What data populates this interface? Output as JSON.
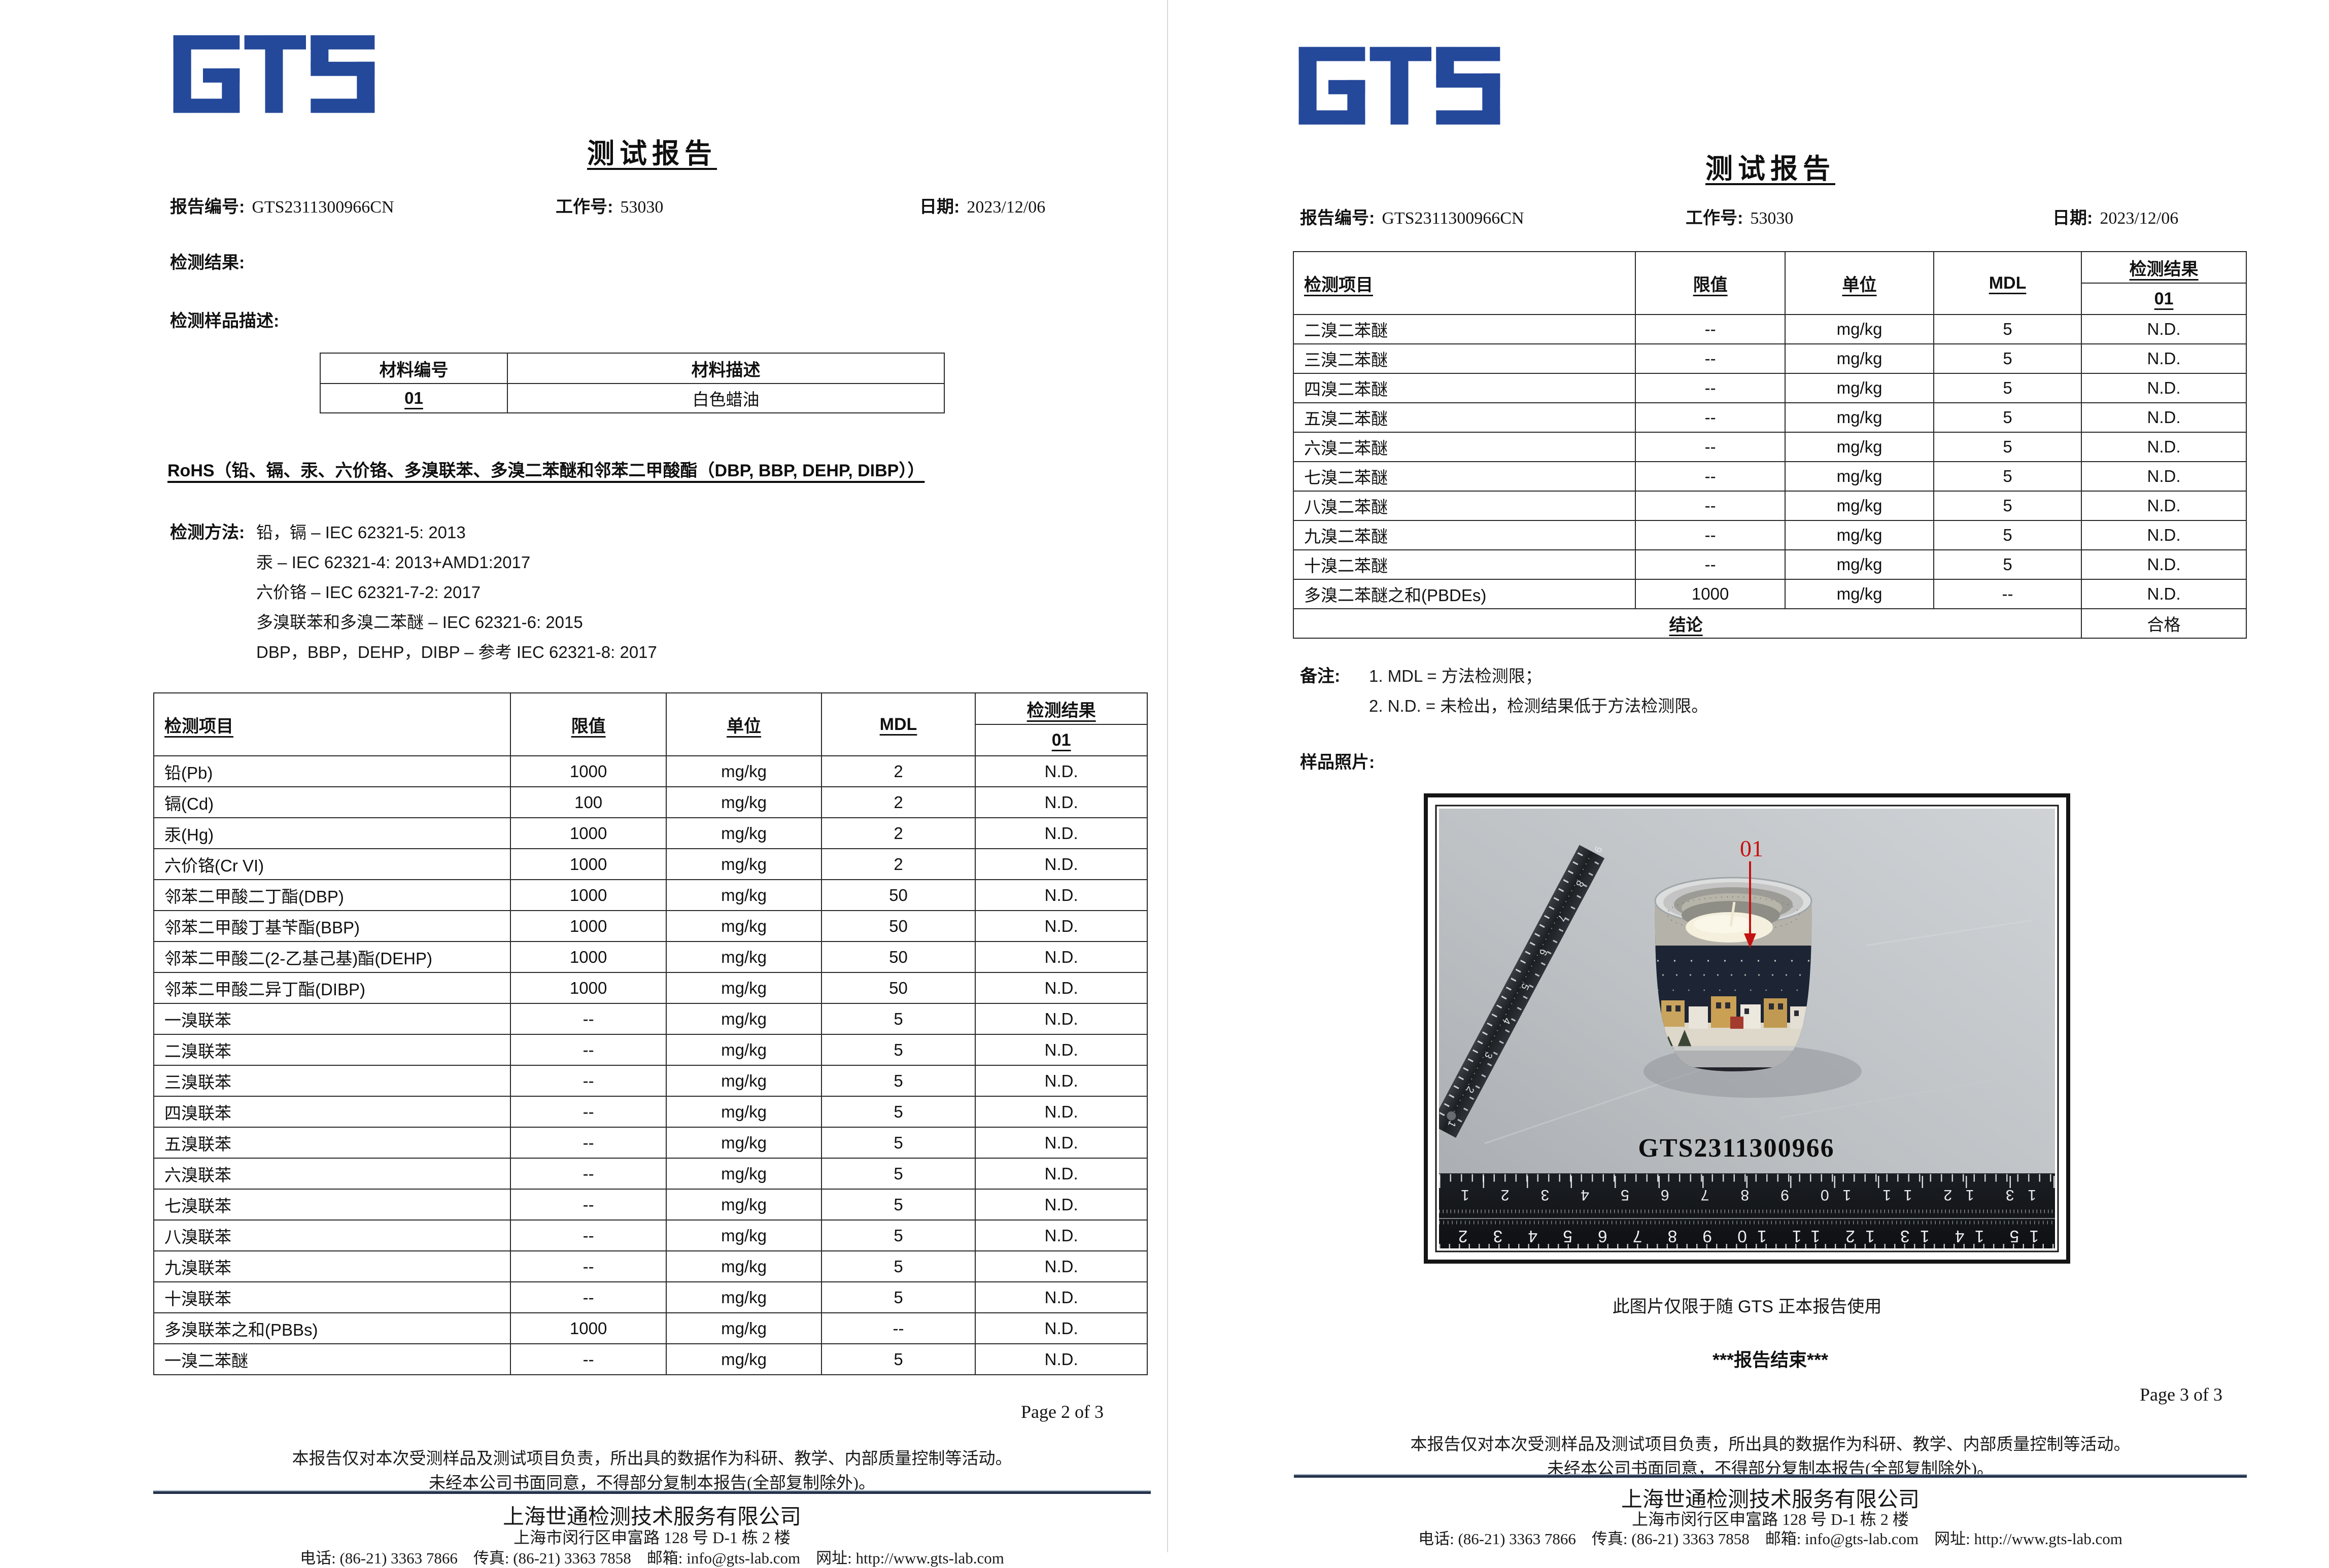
{
  "report": {
    "logo_text": "GTS",
    "title": "测试报告",
    "report_no_label": "报告编号:",
    "report_no": "GTS2311300966CN",
    "job_no_label": "工作号:",
    "job_no": "53030",
    "date_label": "日期:",
    "date": "2023/12/06"
  },
  "colors": {
    "logo_blue": "#24489A",
    "marker_red": "#c41111"
  },
  "page2": {
    "page_label": "Page 2 of 3",
    "result_label": "检测结果:",
    "sample_desc_label": "检测样品描述:",
    "material_table": {
      "headers": [
        "材料编号",
        "材料描述"
      ],
      "row": {
        "material_no": "01",
        "material_desc": "白色蜡油"
      }
    },
    "rohs_heading": "RoHS（铅、镉、汞、六价铬、多溴联苯、多溴二苯醚和邻苯二甲酸酯（DBP, BBP, DEHP, DIBP））",
    "methods": {
      "label": "检测方法:",
      "lines": [
        "铅，镉 – IEC 62321-5: 2013",
        "汞 – IEC 62321-4: 2013+AMD1:2017",
        "六价铬 – IEC 62321-7-2: 2017",
        "多溴联苯和多溴二苯醚 – IEC 62321-6: 2015",
        "DBP，BBP，DEHP，DIBP – 参考 IEC 62321-8: 2017"
      ]
    },
    "table": {
      "headers": [
        "检测项目",
        "限值",
        "单位",
        "MDL",
        "检测结果"
      ],
      "sub_header": "01",
      "rows": [
        [
          "铅(Pb)",
          "1000",
          "mg/kg",
          "2",
          "N.D."
        ],
        [
          "镉(Cd)",
          "100",
          "mg/kg",
          "2",
          "N.D."
        ],
        [
          "汞(Hg)",
          "1000",
          "mg/kg",
          "2",
          "N.D."
        ],
        [
          "六价铬(Cr VI)",
          "1000",
          "mg/kg",
          "2",
          "N.D."
        ],
        [
          "邻苯二甲酸二丁酯(DBP)",
          "1000",
          "mg/kg",
          "50",
          "N.D."
        ],
        [
          "邻苯二甲酸丁基苄酯(BBP)",
          "1000",
          "mg/kg",
          "50",
          "N.D."
        ],
        [
          "邻苯二甲酸二(2-乙基己基)酯(DEHP)",
          "1000",
          "mg/kg",
          "50",
          "N.D."
        ],
        [
          "邻苯二甲酸二异丁酯(DIBP)",
          "1000",
          "mg/kg",
          "50",
          "N.D."
        ],
        [
          "一溴联苯",
          "--",
          "mg/kg",
          "5",
          "N.D."
        ],
        [
          "二溴联苯",
          "--",
          "mg/kg",
          "5",
          "N.D."
        ],
        [
          "三溴联苯",
          "--",
          "mg/kg",
          "5",
          "N.D."
        ],
        [
          "四溴联苯",
          "--",
          "mg/kg",
          "5",
          "N.D."
        ],
        [
          "五溴联苯",
          "--",
          "mg/kg",
          "5",
          "N.D."
        ],
        [
          "六溴联苯",
          "--",
          "mg/kg",
          "5",
          "N.D."
        ],
        [
          "七溴联苯",
          "--",
          "mg/kg",
          "5",
          "N.D."
        ],
        [
          "八溴联苯",
          "--",
          "mg/kg",
          "5",
          "N.D."
        ],
        [
          "九溴联苯",
          "--",
          "mg/kg",
          "5",
          "N.D."
        ],
        [
          "十溴联苯",
          "--",
          "mg/kg",
          "5",
          "N.D."
        ],
        [
          "多溴联苯之和(PBBs)",
          "1000",
          "mg/kg",
          "--",
          "N.D."
        ],
        [
          "一溴二苯醚",
          "--",
          "mg/kg",
          "5",
          "N.D."
        ]
      ]
    }
  },
  "page3": {
    "page_label": "Page 3 of 3",
    "table": {
      "headers": [
        "检测项目",
        "限值",
        "单位",
        "MDL",
        "检测结果"
      ],
      "sub_header": "01",
      "rows": [
        [
          "二溴二苯醚",
          "--",
          "mg/kg",
          "5",
          "N.D."
        ],
        [
          "三溴二苯醚",
          "--",
          "mg/kg",
          "5",
          "N.D."
        ],
        [
          "四溴二苯醚",
          "--",
          "mg/kg",
          "5",
          "N.D."
        ],
        [
          "五溴二苯醚",
          "--",
          "mg/kg",
          "5",
          "N.D."
        ],
        [
          "六溴二苯醚",
          "--",
          "mg/kg",
          "5",
          "N.D."
        ],
        [
          "七溴二苯醚",
          "--",
          "mg/kg",
          "5",
          "N.D."
        ],
        [
          "八溴二苯醚",
          "--",
          "mg/kg",
          "5",
          "N.D."
        ],
        [
          "九溴二苯醚",
          "--",
          "mg/kg",
          "5",
          "N.D."
        ],
        [
          "十溴二苯醚",
          "--",
          "mg/kg",
          "5",
          "N.D."
        ],
        [
          "多溴二苯醚之和(PBDEs)",
          "1000",
          "mg/kg",
          "--",
          "N.D."
        ]
      ],
      "conclusion_label": "结论",
      "conclusion_value": "合格"
    },
    "notes": {
      "label": "备注:",
      "lines": [
        "1. MDL = 方法检测限；",
        "2. N.D. = 未检出，检测结果低于方法检测限。"
      ]
    },
    "sample_photo_label": "样品照片:",
    "photo": {
      "marker": "01",
      "sample_id": "GTS2311300966",
      "ruler_top_numbers_mirrored": "13  12  11  10  9  8  7  6  5  4  3  2  1",
      "ruler_bottom_numbers_mirrored": "15  14  13  12  11  10  9  8  7  6  5  4  3  2",
      "vertical_ruler_numbers": "9  8  7  6  5  4  3  2  1"
    },
    "photo_caption": "此图片仅限于随 GTS 正本报告使用",
    "report_end": "***报告结束***"
  },
  "footer": {
    "disclaimer1": "本报告仅对本次受测样品及测试项目负责，所出具的数据作为科研、教学、内部质量控制等活动。",
    "disclaimer2": "未经本公司书面同意，不得部分复制本报告(全部复制除外)。",
    "company": "上海世通检测技术服务有限公司",
    "address": "上海市闵行区申富路 128 号 D-1 栋 2 楼",
    "contact": "电话: (86-21) 3363 7866　传真: (86-21) 3363 7858　邮箱: info@gts-lab.com　网址: http://www.gts-lab.com"
  }
}
